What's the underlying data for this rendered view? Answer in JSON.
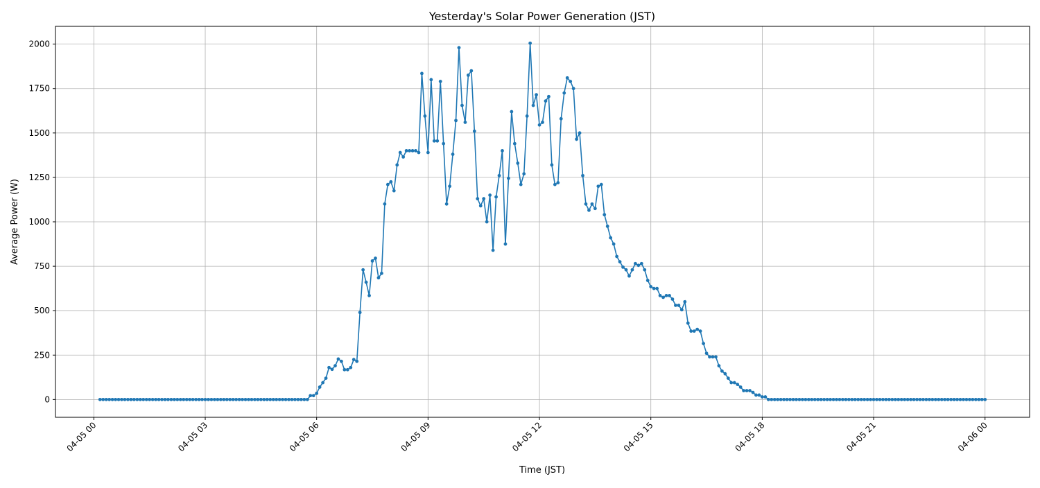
{
  "chart_data": {
    "type": "line",
    "title": "Yesterday's Solar Power Generation (JST)",
    "xlabel": "Time (JST)",
    "ylabel": "Average Power (W)",
    "ylim": [
      -100,
      2100
    ],
    "xlim": [
      "04-04 22:58",
      "04-06 01:12"
    ],
    "grid": true,
    "line_color": "#1f77b4",
    "marker": "circle",
    "x_tick_labels": [
      "04-05 00",
      "04-05 03",
      "04-05 06",
      "04-05 09",
      "04-05 12",
      "04-05 15",
      "04-05 18",
      "04-05 21",
      "04-06 00"
    ],
    "y_ticks": [
      0,
      250,
      500,
      750,
      1000,
      1250,
      1500,
      1750,
      2000
    ],
    "x": [
      "04-05 00:10",
      "04-05 00:15",
      "04-05 00:20",
      "04-05 00:25",
      "04-05 00:30",
      "04-05 00:35",
      "04-05 00:40",
      "04-05 00:45",
      "04-05 00:50",
      "04-05 00:55",
      "04-05 01:00",
      "04-05 01:05",
      "04-05 01:10",
      "04-05 01:15",
      "04-05 01:20",
      "04-05 01:25",
      "04-05 01:30",
      "04-05 01:35",
      "04-05 01:40",
      "04-05 01:45",
      "04-05 01:50",
      "04-05 01:55",
      "04-05 02:00",
      "04-05 02:05",
      "04-05 02:10",
      "04-05 02:15",
      "04-05 02:20",
      "04-05 02:25",
      "04-05 02:30",
      "04-05 02:35",
      "04-05 02:40",
      "04-05 02:45",
      "04-05 02:50",
      "04-05 02:55",
      "04-05 03:00",
      "04-05 03:05",
      "04-05 03:10",
      "04-05 03:15",
      "04-05 03:20",
      "04-05 03:25",
      "04-05 03:30",
      "04-05 03:35",
      "04-05 03:40",
      "04-05 03:45",
      "04-05 03:50",
      "04-05 03:55",
      "04-05 04:00",
      "04-05 04:05",
      "04-05 04:10",
      "04-05 04:15",
      "04-05 04:20",
      "04-05 04:25",
      "04-05 04:30",
      "04-05 04:35",
      "04-05 04:40",
      "04-05 04:45",
      "04-05 04:50",
      "04-05 04:55",
      "04-05 05:00",
      "04-05 05:05",
      "04-05 05:10",
      "04-05 05:15",
      "04-05 05:20",
      "04-05 05:25",
      "04-05 05:30",
      "04-05 05:35",
      "04-05 05:40",
      "04-05 05:45",
      "04-05 05:50",
      "04-05 05:55",
      "04-05 06:00",
      "04-05 06:05",
      "04-05 06:10",
      "04-05 06:15",
      "04-05 06:20",
      "04-05 06:25",
      "04-05 06:30",
      "04-05 06:35",
      "04-05 06:40",
      "04-05 06:45",
      "04-05 06:50",
      "04-05 06:55",
      "04-05 07:00",
      "04-05 07:05",
      "04-05 07:10",
      "04-05 07:15",
      "04-05 07:20",
      "04-05 07:25",
      "04-05 07:30",
      "04-05 07:35",
      "04-05 07:40",
      "04-05 07:45",
      "04-05 07:50",
      "04-05 07:55",
      "04-05 08:00",
      "04-05 08:05",
      "04-05 08:10",
      "04-05 08:15",
      "04-05 08:20",
      "04-05 08:25",
      "04-05 08:30",
      "04-05 08:35",
      "04-05 08:40",
      "04-05 08:45",
      "04-05 08:50",
      "04-05 08:55",
      "04-05 09:00",
      "04-05 09:05",
      "04-05 09:10",
      "04-05 09:15",
      "04-05 09:20",
      "04-05 09:25",
      "04-05 09:30",
      "04-05 09:35",
      "04-05 09:40",
      "04-05 09:45",
      "04-05 09:50",
      "04-05 09:55",
      "04-05 10:00",
      "04-05 10:05",
      "04-05 10:10",
      "04-05 10:15",
      "04-05 10:20",
      "04-05 10:25",
      "04-05 10:30",
      "04-05 10:35",
      "04-05 10:40",
      "04-05 10:45",
      "04-05 10:50",
      "04-05 10:55",
      "04-05 11:00",
      "04-05 11:05",
      "04-05 11:10",
      "04-05 11:15",
      "04-05 11:20",
      "04-05 11:25",
      "04-05 11:30",
      "04-05 11:35",
      "04-05 11:40",
      "04-05 11:45",
      "04-05 11:50",
      "04-05 11:55",
      "04-05 12:00",
      "04-05 12:05",
      "04-05 12:10",
      "04-05 12:15",
      "04-05 12:20",
      "04-05 12:25",
      "04-05 12:30",
      "04-05 12:35",
      "04-05 12:40",
      "04-05 12:45",
      "04-05 12:50",
      "04-05 12:55",
      "04-05 13:00",
      "04-05 13:05",
      "04-05 13:10",
      "04-05 13:15",
      "04-05 13:20",
      "04-05 13:25",
      "04-05 13:30",
      "04-05 13:35",
      "04-05 13:40",
      "04-05 13:45",
      "04-05 13:50",
      "04-05 13:55",
      "04-05 14:00",
      "04-05 14:05",
      "04-05 14:10",
      "04-05 14:15",
      "04-05 14:20",
      "04-05 14:25",
      "04-05 14:30",
      "04-05 14:35",
      "04-05 14:40",
      "04-05 14:45",
      "04-05 14:50",
      "04-05 14:55",
      "04-05 15:00",
      "04-05 15:05",
      "04-05 15:10",
      "04-05 15:15",
      "04-05 15:20",
      "04-05 15:25",
      "04-05 15:30",
      "04-05 15:35",
      "04-05 15:40",
      "04-05 15:45",
      "04-05 15:50",
      "04-05 15:55",
      "04-05 16:00",
      "04-05 16:05",
      "04-05 16:10",
      "04-05 16:15",
      "04-05 16:20",
      "04-05 16:25",
      "04-05 16:30",
      "04-05 16:35",
      "04-05 16:40",
      "04-05 16:45",
      "04-05 16:50",
      "04-05 16:55",
      "04-05 17:00",
      "04-05 17:05",
      "04-05 17:10",
      "04-05 17:15",
      "04-05 17:20",
      "04-05 17:25",
      "04-05 17:30",
      "04-05 17:35",
      "04-05 17:40",
      "04-05 17:45",
      "04-05 17:50",
      "04-05 17:55",
      "04-05 18:00",
      "04-05 18:05",
      "04-05 18:10",
      "04-05 18:15",
      "04-05 18:20",
      "04-05 18:25",
      "04-05 18:30",
      "04-05 18:35",
      "04-05 18:40",
      "04-05 18:45",
      "04-05 18:50",
      "04-05 18:55",
      "04-05 19:00",
      "04-05 19:05",
      "04-05 19:10",
      "04-05 19:15",
      "04-05 19:20",
      "04-05 19:25",
      "04-05 19:30",
      "04-05 19:35",
      "04-05 19:40",
      "04-05 19:45",
      "04-05 19:50",
      "04-05 19:55",
      "04-05 20:00",
      "04-05 20:05",
      "04-05 20:10",
      "04-05 20:15",
      "04-05 20:20",
      "04-05 20:25",
      "04-05 20:30",
      "04-05 20:35",
      "04-05 20:40",
      "04-05 20:45",
      "04-05 20:50",
      "04-05 20:55",
      "04-05 21:00",
      "04-05 21:05",
      "04-05 21:10",
      "04-05 21:15",
      "04-05 21:20",
      "04-05 21:25",
      "04-05 21:30",
      "04-05 21:35",
      "04-05 21:40",
      "04-05 21:45",
      "04-05 21:50",
      "04-05 21:55",
      "04-05 22:00",
      "04-05 22:05",
      "04-05 22:10",
      "04-05 22:15",
      "04-05 22:20",
      "04-05 22:25",
      "04-05 22:30",
      "04-05 22:35",
      "04-05 22:40",
      "04-05 22:45",
      "04-05 22:50",
      "04-05 22:55",
      "04-05 23:00",
      "04-05 23:05",
      "04-05 23:10",
      "04-05 23:15",
      "04-05 23:20",
      "04-05 23:25",
      "04-05 23:30",
      "04-05 23:35",
      "04-05 23:40",
      "04-05 23:45",
      "04-05 23:50",
      "04-05 23:55",
      "04-06 00:00"
    ],
    "values": [
      0,
      0,
      0,
      0,
      0,
      0,
      0,
      0,
      0,
      0,
      0,
      0,
      0,
      0,
      0,
      0,
      0,
      0,
      0,
      0,
      0,
      0,
      0,
      0,
      0,
      0,
      0,
      0,
      0,
      0,
      0,
      0,
      0,
      0,
      0,
      0,
      0,
      0,
      0,
      0,
      0,
      0,
      0,
      0,
      0,
      0,
      0,
      0,
      0,
      0,
      0,
      0,
      0,
      0,
      0,
      0,
      0,
      0,
      0,
      0,
      0,
      0,
      0,
      0,
      0,
      0,
      0,
      0,
      22,
      22,
      35,
      70,
      95,
      120,
      180,
      170,
      190,
      228,
      215,
      168,
      168,
      180,
      225,
      215,
      490,
      730,
      660,
      585,
      780,
      795,
      685,
      710,
      1100,
      1210,
      1225,
      1175,
      1320,
      1390,
      1365,
      1400,
      1400,
      1400,
      1400,
      1390,
      1835,
      1595,
      1390,
      1800,
      1455,
      1455,
      1790,
      1440,
      1100,
      1200,
      1380,
      1570,
      1980,
      1655,
      1560,
      1825,
      1850,
      1510,
      1130,
      1090,
      1130,
      1000,
      1150,
      840,
      1140,
      1260,
      1400,
      875,
      1245,
      1620,
      1440,
      1330,
      1210,
      1270,
      1595,
      2005,
      1655,
      1715,
      1545,
      1560,
      1680,
      1705,
      1320,
      1210,
      1220,
      1580,
      1725,
      1810,
      1790,
      1750,
      1465,
      1500,
      1260,
      1100,
      1065,
      1100,
      1075,
      1200,
      1210,
      1040,
      975,
      910,
      875,
      805,
      775,
      745,
      730,
      695,
      730,
      765,
      755,
      765,
      730,
      670,
      635,
      625,
      625,
      585,
      575,
      585,
      585,
      565,
      530,
      530,
      505,
      550,
      430,
      385,
      385,
      395,
      385,
      315,
      260,
      240,
      240,
      240,
      190,
      160,
      145,
      120,
      95,
      95,
      85,
      70,
      50,
      50,
      50,
      40,
      25,
      25,
      15,
      15,
      0,
      0,
      0,
      0,
      0,
      0,
      0,
      0,
      0,
      0,
      0,
      0,
      0,
      0,
      0,
      0,
      0,
      0,
      0,
      0,
      0,
      0,
      0,
      0,
      0,
      0,
      0,
      0,
      0,
      0,
      0,
      0,
      0,
      0,
      0,
      0,
      0,
      0,
      0,
      0,
      0,
      0,
      0,
      0,
      0,
      0,
      0,
      0,
      0,
      0,
      0,
      0,
      0,
      0,
      0,
      0,
      0,
      0,
      0,
      0,
      0,
      0,
      0,
      0,
      0,
      0,
      0,
      0,
      0,
      0,
      0
    ]
  }
}
